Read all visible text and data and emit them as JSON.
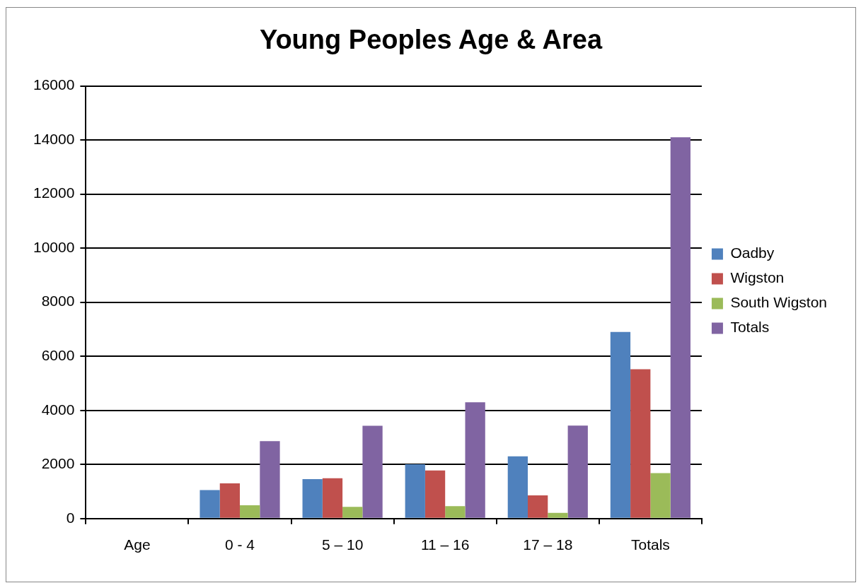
{
  "chart_data": {
    "type": "bar",
    "title": "Young Peoples Age & Area",
    "categories": [
      "Age",
      "0 - 4",
      "5 – 10",
      "11 – 16",
      "17 – 18",
      "Totals"
    ],
    "series": [
      {
        "name": "Oadby",
        "color": "#4f81bd",
        "values": [
          null,
          1050,
          1460,
          2010,
          2300,
          6900
        ]
      },
      {
        "name": "Wigston",
        "color": "#c0504d",
        "values": [
          null,
          1300,
          1490,
          1780,
          860,
          5520
        ]
      },
      {
        "name": "South Wigston",
        "color": "#9bbb59",
        "values": [
          null,
          490,
          430,
          460,
          210,
          1680
        ]
      },
      {
        "name": "Totals",
        "color": "#8064a2",
        "values": [
          null,
          2860,
          3430,
          4300,
          3440,
          14100
        ]
      }
    ],
    "ylim": [
      0,
      16000
    ],
    "yticks": [
      0,
      2000,
      4000,
      6000,
      8000,
      10000,
      12000,
      14000,
      16000
    ],
    "grid": "y",
    "legend": "right"
  }
}
